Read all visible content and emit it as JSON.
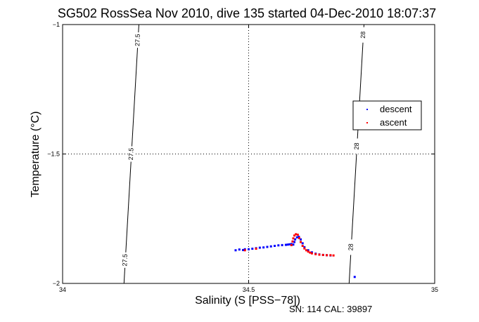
{
  "chart_data": {
    "type": "scatter",
    "title": "SG502 RossSea Nov 2010, dive 135 started 04-Dec-2010 18:07:37",
    "xlabel": "Salinity (S [PSS−78])",
    "ylabel": "Temperature (°C)",
    "xlim": [
      34,
      35
    ],
    "ylim": [
      -2,
      -1
    ],
    "xticks": [
      34,
      34.5,
      35
    ],
    "xtick_labels": [
      "34",
      "34.5",
      "35"
    ],
    "yticks": [
      -2,
      -1.5,
      -1
    ],
    "ytick_labels": [
      "−2",
      "−1.5",
      "−1"
    ],
    "grid": "dotted",
    "legend": {
      "position": "right",
      "entries": [
        "descent",
        "ascent"
      ]
    },
    "series": [
      {
        "name": "descent",
        "color": "#0000ff",
        "points": [
          [
            34.465,
            -1.872
          ],
          [
            34.475,
            -1.869
          ],
          [
            34.485,
            -1.871
          ],
          [
            34.49,
            -1.868
          ],
          [
            34.5,
            -1.868
          ],
          [
            34.51,
            -1.866
          ],
          [
            34.52,
            -1.864
          ],
          [
            34.53,
            -1.862
          ],
          [
            34.54,
            -1.861
          ],
          [
            34.55,
            -1.859
          ],
          [
            34.56,
            -1.857
          ],
          [
            34.57,
            -1.855
          ],
          [
            34.58,
            -1.853
          ],
          [
            34.59,
            -1.852
          ],
          [
            34.6,
            -1.851
          ],
          [
            34.605,
            -1.85
          ],
          [
            34.61,
            -1.849
          ],
          [
            34.615,
            -1.848
          ],
          [
            34.62,
            -1.85
          ],
          [
            34.623,
            -1.84
          ],
          [
            34.625,
            -1.83
          ],
          [
            34.63,
            -1.822
          ],
          [
            34.635,
            -1.82
          ],
          [
            34.64,
            -1.83
          ],
          [
            34.645,
            -1.845
          ],
          [
            34.65,
            -1.86
          ],
          [
            34.66,
            -1.872
          ],
          [
            34.67,
            -1.88
          ],
          [
            34.68,
            -1.885
          ],
          [
            34.69,
            -1.888
          ],
          [
            34.7,
            -1.89
          ],
          [
            34.71,
            -1.891
          ],
          [
            34.72,
            -1.892
          ],
          [
            34.785,
            -1.975
          ]
        ]
      },
      {
        "name": "ascent",
        "color": "#ff0000",
        "points": [
          [
            34.49,
            -1.872
          ],
          [
            34.52,
            -1.866
          ],
          [
            34.615,
            -1.852
          ],
          [
            34.618,
            -1.838
          ],
          [
            34.62,
            -1.826
          ],
          [
            34.623,
            -1.815
          ],
          [
            34.627,
            -1.81
          ],
          [
            34.632,
            -1.812
          ],
          [
            34.636,
            -1.825
          ],
          [
            34.64,
            -1.84
          ],
          [
            34.645,
            -1.855
          ],
          [
            34.65,
            -1.865
          ],
          [
            34.655,
            -1.872
          ],
          [
            34.66,
            -1.877
          ],
          [
            34.665,
            -1.881
          ],
          [
            34.67,
            -1.884
          ],
          [
            34.68,
            -1.887
          ],
          [
            34.69,
            -1.889
          ],
          [
            34.7,
            -1.89
          ],
          [
            34.71,
            -1.891
          ],
          [
            34.72,
            -1.891
          ],
          [
            34.728,
            -1.892
          ]
        ]
      }
    ],
    "isopycnals": [
      {
        "label": "27.5",
        "points": [
          [
            34.205,
            -1
          ],
          [
            34.185,
            -1.5
          ],
          [
            34.165,
            -2
          ]
        ],
        "label_y": [
          -1.06,
          -1.5,
          -1.91
        ]
      },
      {
        "label": "28",
        "points": [
          [
            34.81,
            -1
          ],
          [
            34.79,
            -1.5
          ],
          [
            34.77,
            -2
          ]
        ],
        "label_y": [
          -1.04,
          -1.47,
          -1.86
        ]
      }
    ]
  },
  "footer": {
    "sn_cal": "SN: 114  CAL: 39897"
  }
}
